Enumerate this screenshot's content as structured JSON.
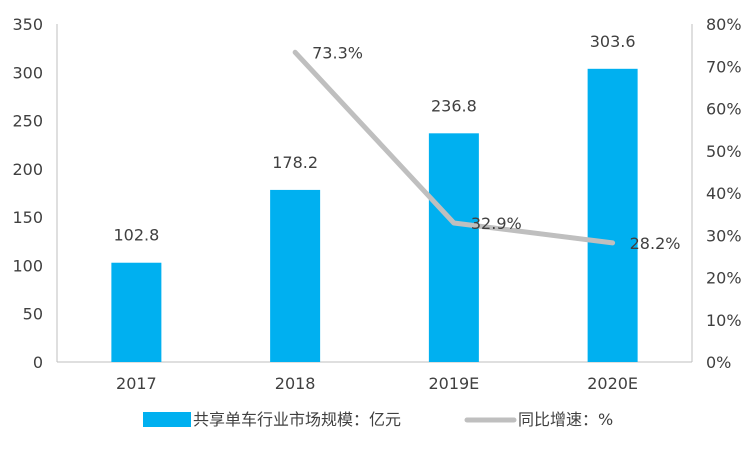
{
  "chart_data": {
    "type": "bar",
    "categories": [
      "2017",
      "2018",
      "2019E",
      "2020E"
    ],
    "series": [
      {
        "name": "共享单车行业市场规模：亿元",
        "type": "bar",
        "axis": "left",
        "color": "#00B0F0",
        "values": [
          102.8,
          178.2,
          236.8,
          303.6
        ],
        "labels": [
          "102.8",
          "178.2",
          "236.8",
          "303.6"
        ]
      },
      {
        "name": "同比增速：%",
        "type": "line",
        "axis": "right",
        "color": "#BFBFBF",
        "values": [
          null,
          73.3,
          32.9,
          28.2
        ],
        "labels": [
          "",
          "73.3%",
          "32.9%",
          "28.2%"
        ]
      }
    ],
    "y_left": {
      "min": 0,
      "max": 350,
      "ticks": [
        0,
        50,
        100,
        150,
        200,
        250,
        300,
        350
      ],
      "tick_labels": [
        "0",
        "50",
        "100",
        "150",
        "200",
        "250",
        "300",
        "350"
      ]
    },
    "y_right": {
      "min": 0,
      "max": 80,
      "ticks": [
        0,
        10,
        20,
        30,
        40,
        50,
        60,
        70,
        80
      ],
      "tick_labels": [
        "0%",
        "10%",
        "20%",
        "30%",
        "40%",
        "50%",
        "60%",
        "70%",
        "80%"
      ]
    },
    "grid": false,
    "legend_position": "bottom"
  }
}
